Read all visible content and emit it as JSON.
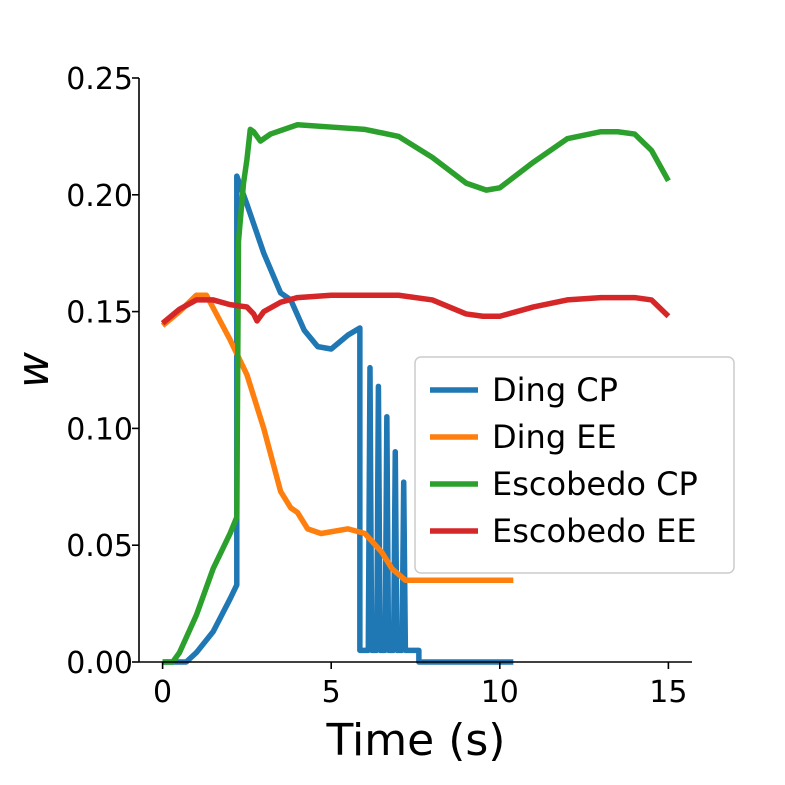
{
  "chart_data": {
    "type": "line",
    "title": "",
    "xlabel": "Time (s)",
    "ylabel": "w",
    "xlim": [
      -0.7,
      15.7
    ],
    "ylim": [
      0,
      0.25
    ],
    "xticks": [
      0,
      5,
      10,
      15
    ],
    "xtick_labels": [
      "0",
      "5",
      "10",
      "15"
    ],
    "yticks": [
      0,
      0.05,
      0.1,
      0.15,
      0.2,
      0.25
    ],
    "ytick_labels": [
      "0.00",
      "0.05",
      "0.10",
      "0.15",
      "0.20",
      "0.25"
    ],
    "grid": false,
    "legend_position": "center-right",
    "series": [
      {
        "name": "Ding CP",
        "color": "#1f77b4",
        "x": [
          0,
          0.7,
          1.0,
          1.5,
          2.0,
          2.2,
          2.2,
          2.5,
          3.0,
          3.5,
          3.8,
          4.2,
          4.6,
          5.0,
          5.5,
          5.85,
          5.85,
          6.1,
          6.15,
          6.2,
          6.35,
          6.4,
          6.45,
          6.6,
          6.65,
          6.7,
          6.85,
          6.9,
          6.95,
          7.1,
          7.15,
          7.2,
          7.6,
          7.6,
          10.4
        ],
        "y": [
          0,
          0,
          0.004,
          0.013,
          0.027,
          0.033,
          0.208,
          0.196,
          0.175,
          0.158,
          0.155,
          0.142,
          0.135,
          0.134,
          0.14,
          0.143,
          0.005,
          0.005,
          0.126,
          0.005,
          0.005,
          0.118,
          0.005,
          0.005,
          0.105,
          0.005,
          0.005,
          0.09,
          0.005,
          0.005,
          0.077,
          0.005,
          0.005,
          0.0,
          0.0
        ]
      },
      {
        "name": "Ding EE",
        "color": "#ff7f0e",
        "x": [
          0,
          0.5,
          1.0,
          1.3,
          2.0,
          2.5,
          3.0,
          3.5,
          3.8,
          4.0,
          4.3,
          4.7,
          5.5,
          6.0,
          6.5,
          6.8,
          7.2,
          8.0,
          9.0,
          10.4
        ],
        "y": [
          0.144,
          0.15,
          0.157,
          0.157,
          0.138,
          0.123,
          0.1,
          0.073,
          0.066,
          0.064,
          0.057,
          0.055,
          0.057,
          0.055,
          0.047,
          0.04,
          0.035,
          0.035,
          0.035,
          0.035
        ]
      },
      {
        "name": "Escobedo CP",
        "color": "#2ca02c",
        "x": [
          0,
          0.3,
          0.5,
          1.0,
          1.5,
          2.0,
          2.2,
          2.25,
          2.4,
          2.5,
          2.6,
          2.7,
          2.9,
          3.2,
          4.0,
          5.0,
          6.0,
          7.0,
          8.0,
          9.0,
          9.6,
          10.0,
          11.0,
          12.0,
          13.0,
          13.5,
          14.0,
          14.5,
          15.0
        ],
        "y": [
          0,
          0,
          0.004,
          0.02,
          0.04,
          0.055,
          0.062,
          0.18,
          0.205,
          0.215,
          0.228,
          0.227,
          0.223,
          0.226,
          0.23,
          0.229,
          0.228,
          0.225,
          0.216,
          0.205,
          0.202,
          0.203,
          0.214,
          0.224,
          0.227,
          0.227,
          0.226,
          0.219,
          0.206
        ]
      },
      {
        "name": "Escobedo EE",
        "color": "#d62728",
        "x": [
          0,
          0.5,
          1.0,
          1.5,
          2.0,
          2.5,
          2.7,
          2.8,
          3.0,
          3.5,
          4.0,
          5.0,
          6.0,
          7.0,
          8.0,
          9.0,
          9.5,
          10.0,
          11.0,
          12.0,
          13.0,
          14.0,
          14.5,
          15.0
        ],
        "y": [
          0.145,
          0.151,
          0.155,
          0.155,
          0.153,
          0.152,
          0.149,
          0.146,
          0.15,
          0.154,
          0.156,
          0.157,
          0.157,
          0.157,
          0.155,
          0.149,
          0.148,
          0.148,
          0.152,
          0.155,
          0.156,
          0.156,
          0.155,
          0.148
        ]
      }
    ]
  }
}
